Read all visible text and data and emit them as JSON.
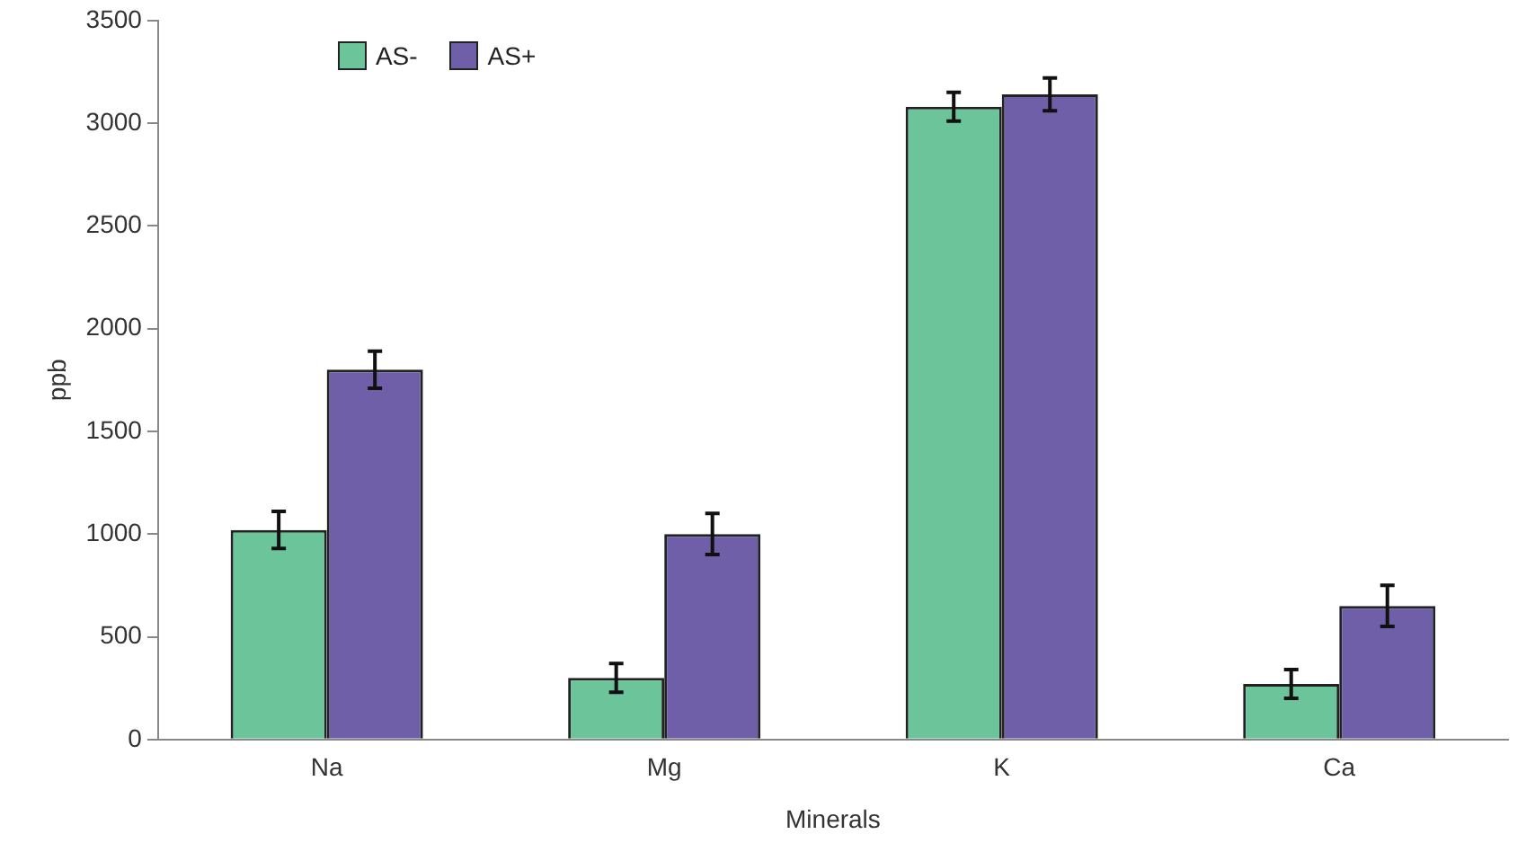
{
  "chart_data": {
    "type": "bar",
    "xlabel": "Minerals",
    "ylabel": "ppb",
    "categories": [
      "Na",
      "Mg",
      "K",
      "Ca"
    ],
    "series": [
      {
        "name": "AS-",
        "color": "#6cc49a",
        "values": [
          1020,
          300,
          3080,
          270
        ],
        "errors": [
          90,
          70,
          70,
          70
        ]
      },
      {
        "name": "AS+",
        "color": "#6f5fa8",
        "values": [
          1800,
          1000,
          3140,
          650
        ],
        "errors": [
          90,
          100,
          80,
          100
        ]
      }
    ],
    "ylim": [
      0,
      3500
    ],
    "yticks": [
      0,
      500,
      1000,
      1500,
      2000,
      2500,
      3000,
      3500
    ],
    "grid": false,
    "legend": "top left"
  }
}
